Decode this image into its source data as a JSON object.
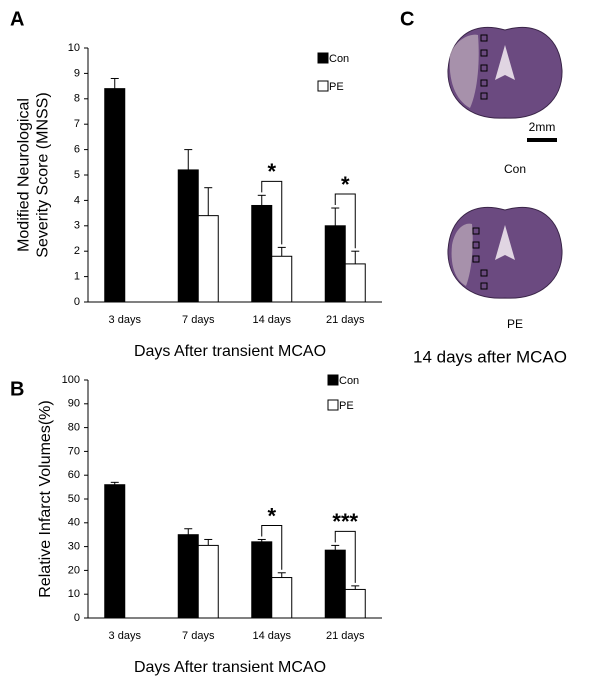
{
  "chart_data": [
    {
      "type": "bar",
      "panel_label": "A",
      "ylabel": [
        "Modified Neurological",
        "Severity Score (MNSS)"
      ],
      "xlabel": "Days After transient MCAO",
      "categories": [
        "3 days",
        "7 days",
        "14 days",
        "21 days"
      ],
      "series": [
        {
          "name": "Con",
          "color": "#000000",
          "values": [
            8.4,
            5.2,
            3.8,
            3.0
          ],
          "errors": [
            0.4,
            0.8,
            0.4,
            0.7
          ]
        },
        {
          "name": "PE",
          "color": "#ffffff",
          "values": [
            null,
            3.4,
            1.8,
            1.5
          ],
          "errors": [
            null,
            1.1,
            0.35,
            0.5
          ]
        }
      ],
      "ylim": [
        0,
        10
      ],
      "yticks": [
        0,
        1,
        2,
        3,
        4,
        5,
        6,
        7,
        8,
        9,
        10
      ],
      "annotations": [
        {
          "text": "*",
          "category": "14 days"
        },
        {
          "text": "*",
          "category": "21 days"
        }
      ]
    },
    {
      "type": "bar",
      "panel_label": "B",
      "ylabel": [
        "Relative Infarct Volumes(%)"
      ],
      "xlabel": "Days After transient MCAO",
      "categories": [
        "3 days",
        "7 days",
        "14 days",
        "21 days"
      ],
      "series": [
        {
          "name": "Con",
          "color": "#000000",
          "values": [
            56,
            35,
            32,
            28.5
          ],
          "errors": [
            1,
            2.5,
            1,
            2
          ]
        },
        {
          "name": "PE",
          "color": "#ffffff",
          "values": [
            null,
            30.5,
            17,
            12
          ],
          "errors": [
            null,
            2.5,
            2,
            1.5
          ]
        }
      ],
      "ylim": [
        0,
        100
      ],
      "yticks": [
        0,
        10,
        20,
        30,
        40,
        50,
        60,
        70,
        80,
        90,
        100
      ],
      "annotations": [
        {
          "text": "*",
          "category": "14 days"
        },
        {
          "text": "***",
          "category": "21 days"
        }
      ]
    }
  ],
  "panel_c": {
    "panel_label": "C",
    "scale_label": "2mm",
    "image_labels": [
      "Con",
      "PE"
    ],
    "caption": "14 days after MCAO"
  }
}
